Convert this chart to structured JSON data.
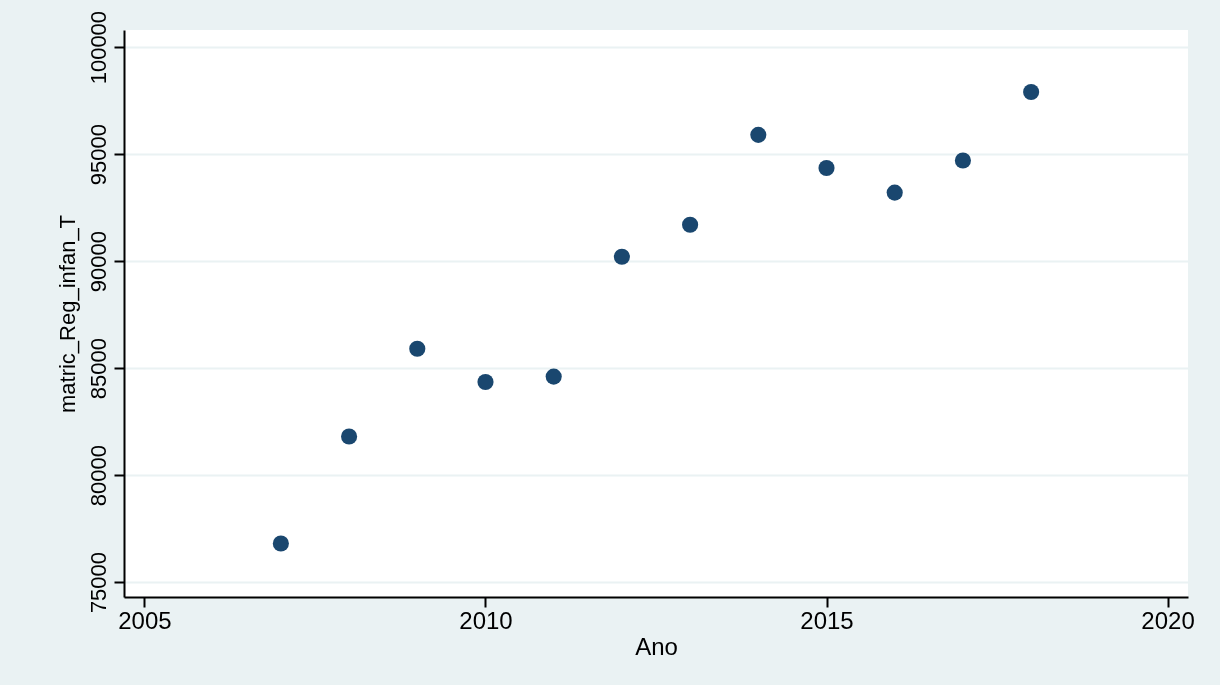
{
  "chart_data": {
    "type": "scatter",
    "xlabel": "Ano",
    "ylabel": "matric_Reg_infan_T",
    "x": [
      2007,
      2008,
      2009,
      2010,
      2011,
      2012,
      2013,
      2014,
      2015,
      2016,
      2017,
      2018
    ],
    "series": [
      {
        "color": "#1a476f",
        "values": [
          76800,
          81800,
          85900,
          84350,
          84600,
          90200,
          91700,
          95900,
          94350,
          93200,
          94700,
          97900
        ]
      }
    ],
    "xlim": [
      2004.7,
      2020.3
    ],
    "xticks": [
      2005,
      2010,
      2015,
      2020
    ],
    "ylim": [
      74300,
      100800
    ],
    "yticks": [
      75000,
      80000,
      85000,
      90000,
      95000,
      100000
    ],
    "grid": "y",
    "marker": "circle",
    "legend": false
  }
}
